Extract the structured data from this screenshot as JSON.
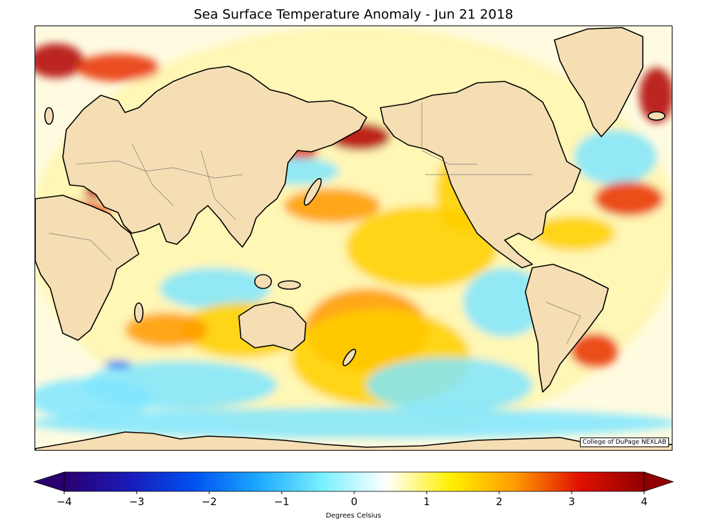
{
  "title": "Sea Surface Temperature Anomaly - Jun 21 2018",
  "credit": "College of DuPage NEXLAB",
  "colorbar": {
    "label": "Degrees Celsius",
    "min": -4,
    "max": 4,
    "ticks": [
      "−4",
      "−3",
      "−2",
      "−1",
      "0",
      "1",
      "2",
      "3",
      "4"
    ],
    "colors": [
      "#2a0070",
      "#1a1ab8",
      "#0050f0",
      "#1ca8ff",
      "#78f0ff",
      "#ffffff",
      "#fff000",
      "#ff9a00",
      "#e01000",
      "#900000"
    ]
  },
  "map_colors": {
    "land": "#f5deb3",
    "coast": "#000000",
    "borders": "#7a7a7a",
    "warm_strong": "#b00000",
    "warm": "#e83000",
    "warm_mid": "#ff9a00",
    "warm_light": "#ffd000",
    "warm_faint": "#fff6b0",
    "cool": "#7fe6ff",
    "cool_strong": "#1a6dff"
  }
}
